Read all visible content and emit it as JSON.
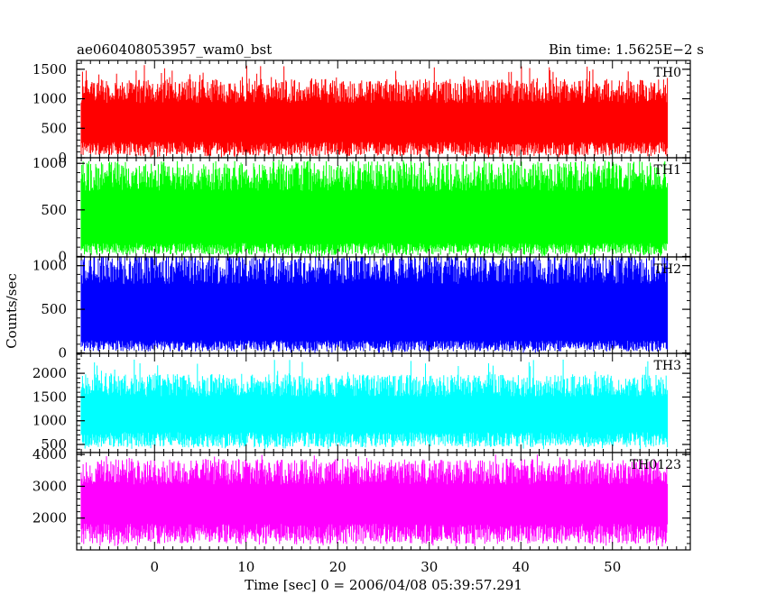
{
  "chart_data": {
    "type": "line",
    "title": "ae060408053957_wam0_bst",
    "subtitle": "Bin time: 1.5625E−2 s",
    "xlabel": "Time [sec] 0 = 2006/04/08 05:39:57.291",
    "ylabel": "Counts/sec",
    "xlim": [
      -8.5,
      58.5
    ],
    "x_ticks": [
      0,
      10,
      20,
      30,
      40,
      50
    ],
    "data_range_x": [
      -8.0,
      56.0
    ],
    "bin_time_s": 0.015625,
    "series": [
      {
        "name": "TH0",
        "color": "#ff0000",
        "ylim": [
          0,
          1650
        ],
        "y_ticks": [
          0,
          500,
          1000,
          1500
        ],
        "typical_range": [
          150,
          1050
        ],
        "min": 0,
        "max": 1600
      },
      {
        "name": "TH1",
        "color": "#00ff00",
        "ylim": [
          -5,
          1060
        ],
        "y_ticks": [
          0,
          500,
          1000
        ],
        "typical_range": [
          80,
          800
        ],
        "min": 0,
        "max": 1050
      },
      {
        "name": "TH2",
        "color": "#0000ff",
        "ylim": [
          -5,
          1100
        ],
        "y_ticks": [
          0,
          500,
          1000
        ],
        "typical_range": [
          80,
          900
        ],
        "min": 0,
        "max": 1100
      },
      {
        "name": "TH3",
        "color": "#00ffff",
        "ylim": [
          330,
          2420
        ],
        "y_ticks": [
          500,
          1000,
          1500,
          2000
        ],
        "typical_range": [
          600,
          1650
        ],
        "min": 400,
        "max": 2300
      },
      {
        "name": "TH0123",
        "color": "#ff00ff",
        "ylim": [
          1000,
          4060
        ],
        "y_ticks": [
          2000,
          3000,
          4000
        ],
        "typical_range": [
          1500,
          3300
        ],
        "min": 1100,
        "max": 4000
      }
    ]
  }
}
